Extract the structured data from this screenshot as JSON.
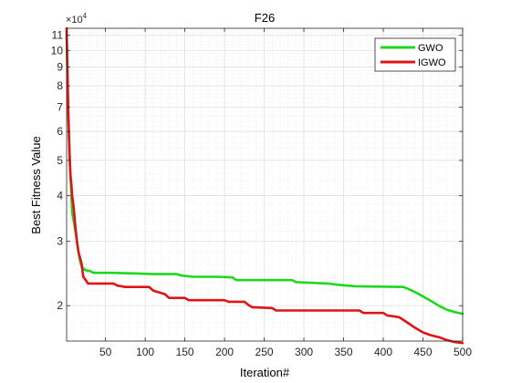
{
  "chart_data": {
    "type": "line",
    "title": "F26",
    "xlabel": "Iteration#",
    "ylabel": "Best Fitness Value",
    "y_multiplier_label": "×10⁴",
    "y_multiplier_base": "×10",
    "y_multiplier_exp": "4",
    "y_scale": "log",
    "xlim": [
      1,
      500
    ],
    "ylim": [
      16000,
      115000
    ],
    "x_ticks": [
      50,
      100,
      150,
      200,
      250,
      300,
      350,
      400,
      450,
      500
    ],
    "x_tick_labels": [
      "50",
      "100",
      "150",
      "200",
      "250",
      "300",
      "350",
      "400",
      "450",
      "500"
    ],
    "y_ticks": [
      20000,
      30000,
      40000,
      50000,
      60000,
      70000,
      80000,
      90000,
      100000,
      110000
    ],
    "y_tick_labels": [
      "2",
      "3",
      "4",
      "5",
      "6",
      "7",
      "8",
      "9",
      "10",
      "11"
    ],
    "grid": true,
    "legend_position": "top-right",
    "series": [
      {
        "name": "GWO",
        "color": "#1ed81e",
        "points": [
          [
            1,
            110000
          ],
          [
            2,
            85000
          ],
          [
            3,
            68000
          ],
          [
            4,
            58000
          ],
          [
            5,
            50000
          ],
          [
            6,
            45000
          ],
          [
            7,
            40000
          ],
          [
            8,
            36000
          ],
          [
            10,
            34000
          ],
          [
            12,
            32000
          ],
          [
            14,
            30000
          ],
          [
            16,
            28000
          ],
          [
            18,
            26500
          ],
          [
            20,
            25500
          ],
          [
            25,
            25000
          ],
          [
            30,
            24900
          ],
          [
            35,
            24600
          ],
          [
            60,
            24600
          ],
          [
            90,
            24500
          ],
          [
            110,
            24400
          ],
          [
            140,
            24400
          ],
          [
            145,
            24200
          ],
          [
            160,
            24000
          ],
          [
            190,
            24000
          ],
          [
            210,
            23900
          ],
          [
            215,
            23500
          ],
          [
            250,
            23500
          ],
          [
            285,
            23500
          ],
          [
            290,
            23200
          ],
          [
            330,
            23000
          ],
          [
            345,
            22800
          ],
          [
            365,
            22600
          ],
          [
            425,
            22500
          ],
          [
            430,
            22300
          ],
          [
            440,
            21800
          ],
          [
            450,
            21200
          ],
          [
            460,
            20600
          ],
          [
            470,
            20000
          ],
          [
            480,
            19500
          ],
          [
            490,
            19200
          ],
          [
            500,
            19000
          ]
        ]
      },
      {
        "name": "IGWO",
        "color": "#e01414",
        "points": [
          [
            1,
            115000
          ],
          [
            2,
            90000
          ],
          [
            3,
            70000
          ],
          [
            4,
            58000
          ],
          [
            5,
            50000
          ],
          [
            6,
            45000
          ],
          [
            7,
            43000
          ],
          [
            8,
            40000
          ],
          [
            10,
            37000
          ],
          [
            12,
            33000
          ],
          [
            14,
            30000
          ],
          [
            16,
            28000
          ],
          [
            18,
            27000
          ],
          [
            20,
            26000
          ],
          [
            22,
            24000
          ],
          [
            25,
            23500
          ],
          [
            28,
            23000
          ],
          [
            60,
            23000
          ],
          [
            65,
            22700
          ],
          [
            75,
            22500
          ],
          [
            105,
            22500
          ],
          [
            110,
            22000
          ],
          [
            125,
            21500
          ],
          [
            130,
            21000
          ],
          [
            150,
            21000
          ],
          [
            155,
            20700
          ],
          [
            200,
            20700
          ],
          [
            205,
            20500
          ],
          [
            225,
            20500
          ],
          [
            230,
            20100
          ],
          [
            235,
            19800
          ],
          [
            260,
            19700
          ],
          [
            265,
            19400
          ],
          [
            370,
            19400
          ],
          [
            375,
            19100
          ],
          [
            400,
            19100
          ],
          [
            405,
            18800
          ],
          [
            420,
            18600
          ],
          [
            430,
            18000
          ],
          [
            440,
            17400
          ],
          [
            450,
            16900
          ],
          [
            460,
            16600
          ],
          [
            470,
            16400
          ],
          [
            480,
            16100
          ],
          [
            490,
            15900
          ],
          [
            500,
            15800
          ]
        ]
      }
    ]
  }
}
